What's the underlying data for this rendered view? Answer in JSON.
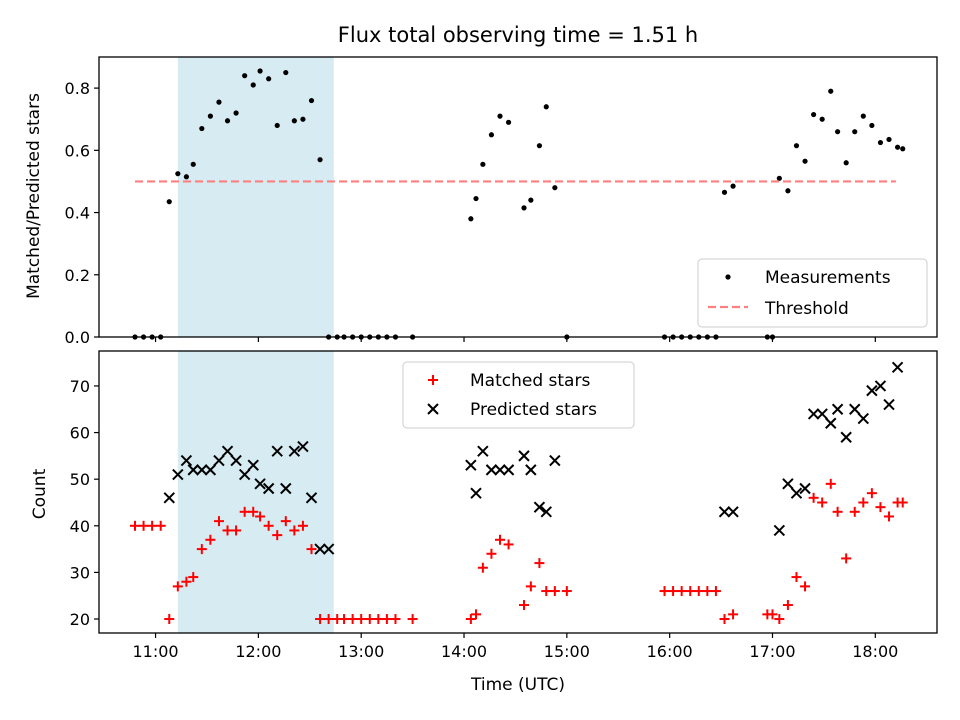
{
  "colors": {
    "shade": "#add8e6",
    "measurement": "#000000",
    "threshold": "#ff7f7f",
    "matched": "#ff0000",
    "predicted": "#000000"
  },
  "chart_data": [
    {
      "type": "scatter",
      "title": "Flux total observing time = 1.51 h",
      "xlabel": "",
      "ylabel": "Matched/Predicted stars",
      "xlim": [
        "10:27",
        "18:36"
      ],
      "ylim": [
        0.0,
        0.9
      ],
      "yticks": [
        0.0,
        0.2,
        0.4,
        0.6,
        0.8
      ],
      "ytick_labels": [
        "0.0",
        "0.2",
        "0.4",
        "0.6",
        "0.8"
      ],
      "xticks": [
        "11:00",
        "12:00",
        "13:00",
        "14:00",
        "15:00",
        "16:00",
        "17:00",
        "18:00"
      ],
      "grid": false,
      "legend_position": "lower right",
      "shaded_interval": [
        "11:13",
        "12:44"
      ],
      "series": [
        {
          "name": "Measurements",
          "kind": "scatter",
          "x": [
            "10:48",
            "10:53",
            "10:58",
            "11:03",
            "11:08",
            "11:13",
            "11:18",
            "11:22",
            "11:27",
            "11:32",
            "11:37",
            "11:42",
            "11:47",
            "11:52",
            "11:57",
            "12:01",
            "12:06",
            "12:11",
            "12:16",
            "12:21",
            "12:26",
            "12:31",
            "12:36",
            "12:41",
            "12:46",
            "12:50",
            "12:55",
            "13:00",
            "13:05",
            "13:10",
            "13:15",
            "13:20",
            "13:30",
            "14:04",
            "14:07",
            "14:11",
            "14:16",
            "14:21",
            "14:26",
            "14:35",
            "14:39",
            "14:44",
            "14:48",
            "14:53",
            "15:00",
            "15:57",
            "16:02",
            "16:07",
            "16:12",
            "16:17",
            "16:22",
            "16:27",
            "16:32",
            "16:37",
            "16:57",
            "17:00",
            "17:04",
            "17:09",
            "17:14",
            "17:19",
            "17:24",
            "17:29",
            "17:34",
            "17:38",
            "17:43",
            "17:48",
            "17:53",
            "17:58",
            "18:03",
            "18:08",
            "18:13",
            "18:16"
          ],
          "y": [
            0.0,
            0.0,
            0.0,
            0.0,
            0.435,
            0.525,
            0.515,
            0.555,
            0.67,
            0.71,
            0.755,
            0.695,
            0.72,
            0.84,
            0.81,
            0.855,
            0.83,
            0.68,
            0.85,
            0.695,
            0.7,
            0.76,
            0.57,
            0.0,
            0.0,
            0.0,
            0.0,
            0.0,
            0.0,
            0.0,
            0.0,
            0.0,
            0.0,
            0.38,
            0.445,
            0.555,
            0.65,
            0.71,
            0.69,
            0.415,
            0.44,
            0.615,
            0.74,
            0.48,
            0.0,
            0.0,
            0.0,
            0.0,
            0.0,
            0.0,
            0.0,
            0.0,
            0.465,
            0.485,
            0.0,
            0.0,
            0.51,
            0.47,
            0.615,
            0.565,
            0.715,
            0.7,
            0.79,
            0.66,
            0.56,
            0.66,
            0.71,
            0.68,
            0.625,
            0.635,
            0.61,
            0.605
          ]
        },
        {
          "name": "Threshold",
          "kind": "line",
          "x": [
            "10:48",
            "18:12"
          ],
          "y": [
            0.5,
            0.5
          ]
        }
      ]
    },
    {
      "type": "scatter",
      "title": "",
      "xlabel": "Time (UTC)",
      "ylabel": "Count",
      "xlim": [
        "10:27",
        "18:36"
      ],
      "ylim": [
        17.0,
        77.5
      ],
      "yticks": [
        20,
        30,
        40,
        50,
        60,
        70
      ],
      "ytick_labels": [
        "20",
        "30",
        "40",
        "50",
        "60",
        "70"
      ],
      "xticks": [
        "11:00",
        "12:00",
        "13:00",
        "14:00",
        "15:00",
        "16:00",
        "17:00",
        "18:00"
      ],
      "grid": false,
      "legend_position": "upper center",
      "shaded_interval": [
        "11:13",
        "12:44"
      ],
      "series": [
        {
          "name": "Matched stars",
          "kind": "plus",
          "x": [
            "10:48",
            "10:53",
            "10:58",
            "11:03",
            "11:08",
            "11:13",
            "11:18",
            "11:22",
            "11:27",
            "11:32",
            "11:37",
            "11:42",
            "11:47",
            "11:52",
            "11:57",
            "12:01",
            "12:06",
            "12:11",
            "12:16",
            "12:21",
            "12:26",
            "12:31",
            "12:36",
            "12:41",
            "12:46",
            "12:50",
            "12:55",
            "13:00",
            "13:05",
            "13:10",
            "13:15",
            "13:20",
            "13:30",
            "14:04",
            "14:07",
            "14:11",
            "14:16",
            "14:21",
            "14:26",
            "14:35",
            "14:39",
            "14:44",
            "14:48",
            "14:53",
            "15:00",
            "15:57",
            "16:02",
            "16:07",
            "16:12",
            "16:17",
            "16:22",
            "16:27",
            "16:32",
            "16:37",
            "16:57",
            "17:00",
            "17:04",
            "17:09",
            "17:14",
            "17:19",
            "17:24",
            "17:29",
            "17:34",
            "17:38",
            "17:43",
            "17:48",
            "17:53",
            "17:58",
            "18:03",
            "18:08",
            "18:13",
            "18:16"
          ],
          "y": [
            40,
            40,
            40,
            40,
            20,
            27,
            28,
            29,
            35,
            37,
            41,
            39,
            39,
            43,
            43,
            42,
            40,
            38,
            41,
            39,
            40,
            35,
            20,
            20,
            20,
            20,
            20,
            20,
            20,
            20,
            20,
            20,
            20,
            20,
            21,
            31,
            34,
            37,
            36,
            23,
            27,
            32,
            26,
            26,
            26,
            26,
            26,
            26,
            26,
            26,
            26,
            26,
            20,
            21,
            21,
            21,
            20,
            23,
            29,
            27,
            46,
            45,
            49,
            43,
            33,
            43,
            45,
            47,
            44,
            42,
            45,
            45
          ]
        },
        {
          "name": "Predicted stars",
          "kind": "cross",
          "x": [
            "11:08",
            "11:13",
            "11:18",
            "11:22",
            "11:27",
            "11:32",
            "11:37",
            "11:42",
            "11:47",
            "11:52",
            "11:57",
            "12:01",
            "12:06",
            "12:11",
            "12:16",
            "12:21",
            "12:26",
            "12:31",
            "12:36",
            "12:41",
            "14:04",
            "14:07",
            "14:11",
            "14:16",
            "14:21",
            "14:26",
            "14:35",
            "14:39",
            "14:44",
            "14:48",
            "14:53",
            "16:32",
            "16:37",
            "17:04",
            "17:09",
            "17:14",
            "17:19",
            "17:24",
            "17:29",
            "17:34",
            "17:38",
            "17:43",
            "17:48",
            "17:53",
            "17:58",
            "18:03",
            "18:08",
            "18:13"
          ],
          "y": [
            46,
            51,
            54,
            52,
            52,
            52,
            54,
            56,
            54,
            51,
            53,
            49,
            48,
            56,
            48,
            56,
            57,
            46,
            35,
            35,
            53,
            47,
            56,
            52,
            52,
            52,
            55,
            52,
            44,
            43,
            54,
            43,
            43,
            39,
            49,
            47,
            48,
            64,
            64,
            62,
            65,
            59,
            65,
            63,
            69,
            70,
            66,
            74
          ]
        }
      ]
    }
  ],
  "legends": {
    "top": [
      "Measurements",
      "Threshold"
    ],
    "bottom": [
      "Matched stars",
      "Predicted stars"
    ]
  }
}
